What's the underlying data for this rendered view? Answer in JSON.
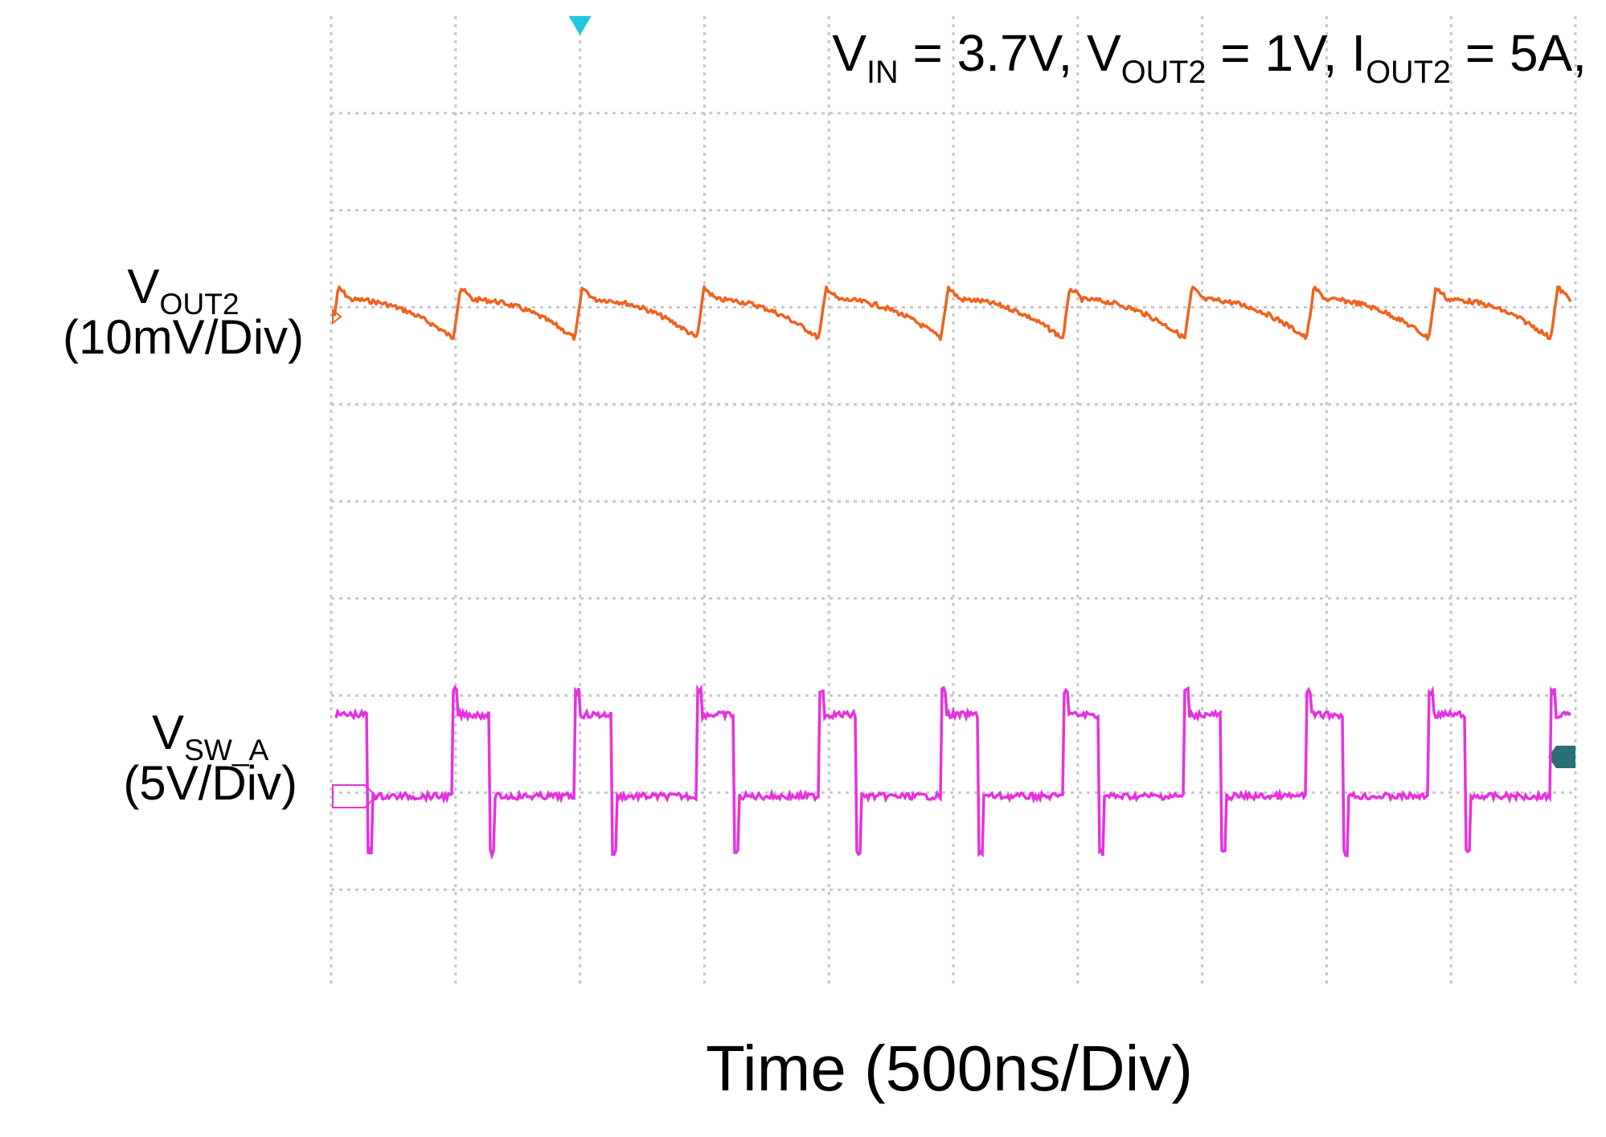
{
  "title": {
    "vin_main": "V",
    "vin_sub": "IN",
    "vin_rest": " = 3.7V, ",
    "vout_main": "V",
    "vout_sub": "OUT2",
    "vout_rest": " = 1V, ",
    "iout_main": "I",
    "iout_sub": "OUT2",
    "iout_rest": " = 5A,"
  },
  "channels": {
    "vout": {
      "name_main": "V",
      "name_sub": "OUT2",
      "scale": "(10mV/Div)",
      "color": "#F0621E"
    },
    "vsw": {
      "name_main": "V",
      "name_sub": "SW_A",
      "scale": "(5V/Div)",
      "color": "#E830E0"
    }
  },
  "xaxis": {
    "label": "Time (500ns/Div)"
  },
  "colors": {
    "grid": "#C8C8C8",
    "trigger_marker": "#22C8E0",
    "level_marker": "#2A6E78",
    "background": "#FFFFFF"
  },
  "chart_data": {
    "type": "line",
    "xlabel": "Time (500ns/Div)",
    "x_units": "ns",
    "x_range": [
      0,
      5000
    ],
    "horizontal_divisions": 10,
    "vertical_divisions": 10,
    "grid": true,
    "switching_period_ns": 490,
    "series": [
      {
        "name": "VOUT2",
        "scale": "10mV/Div",
        "shape": "ripple",
        "peak_to_peak_divisions": 0.5,
        "rising_edges_ns": [
          0,
          490,
          980,
          1470,
          1960,
          2450,
          2940,
          3430,
          3920,
          4410,
          4900
        ]
      },
      {
        "name": "VSW_A",
        "scale": "5V/Div",
        "shape": "square",
        "high_divisions": 0.7,
        "low_divisions": 0,
        "duty_cycle": 0.3,
        "rising_edges_ns": [
          0,
          490,
          980,
          1470,
          1960,
          2450,
          2940,
          3430,
          3920,
          4410,
          4900
        ]
      }
    ]
  }
}
